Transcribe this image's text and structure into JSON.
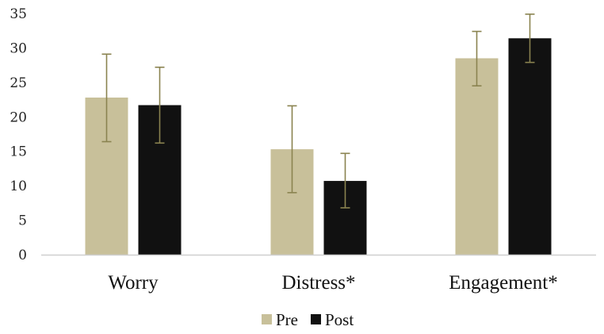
{
  "chart_data": {
    "type": "bar",
    "categories": [
      "Worry",
      "Distress*",
      "Engagement*"
    ],
    "series": [
      {
        "name": "Pre",
        "color": "#c8c09a",
        "values": [
          22.8,
          15.3,
          28.5
        ],
        "error_low": [
          16.4,
          9.0,
          24.5
        ],
        "error_high": [
          29.1,
          21.6,
          32.4
        ]
      },
      {
        "name": "Post",
        "color": "#111111",
        "values": [
          21.7,
          10.7,
          31.4
        ],
        "error_low": [
          16.2,
          6.8,
          27.9
        ],
        "error_high": [
          27.2,
          14.7,
          34.9
        ]
      }
    ],
    "error_bar_color": "#8a8350",
    "yticks": [
      0,
      5,
      10,
      15,
      20,
      25,
      30,
      35
    ],
    "ylim": [
      0,
      35
    ],
    "title": "",
    "xlabel": "",
    "ylabel": "",
    "grid": false,
    "legend_position": "bottom-center"
  }
}
